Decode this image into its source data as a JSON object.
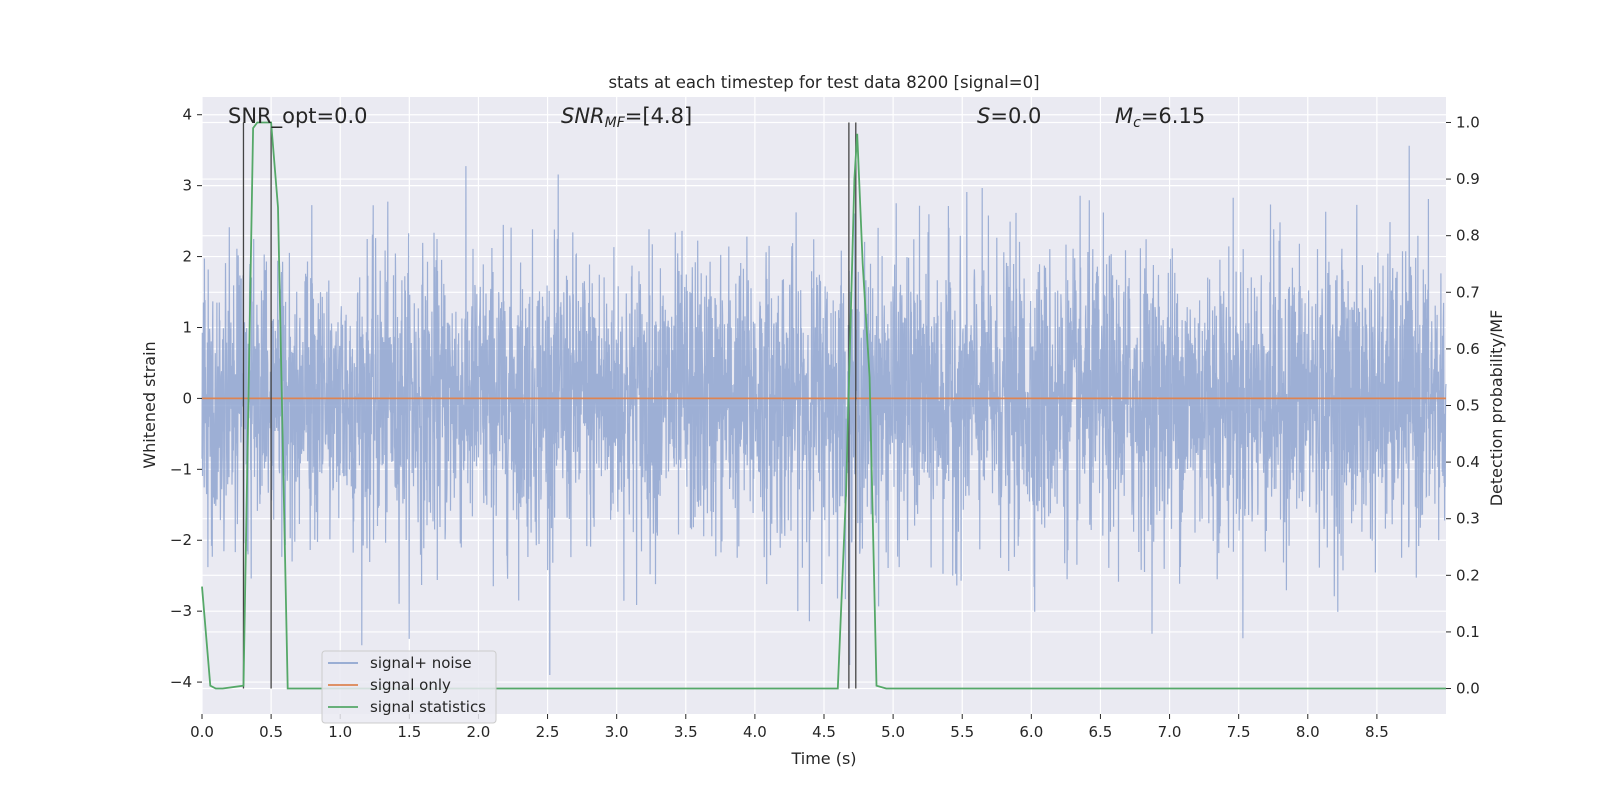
{
  "chart_data": {
    "type": "line",
    "title": "stats at each timestep for test data 8200 [signal=0]",
    "xlabel": "Time (s)",
    "ylabel": "Whitened strain",
    "y2label": "Detection probability/MF",
    "xlim": [
      0,
      9.0
    ],
    "ylim": [
      -4.45,
      4.25
    ],
    "y2lim": [
      -0.045,
      1.045
    ],
    "xticks": [
      "0.0",
      "0.5",
      "1.0",
      "1.5",
      "2.0",
      "2.5",
      "3.0",
      "3.5",
      "4.0",
      "4.5",
      "5.0",
      "5.5",
      "6.0",
      "6.5",
      "7.0",
      "7.5",
      "8.0",
      "8.5"
    ],
    "yticks": [
      "4",
      "3",
      "2",
      "1",
      "0",
      "−1",
      "−2",
      "−3",
      "−4"
    ],
    "y2ticks": [
      "1.0",
      "0.9",
      "0.8",
      "0.7",
      "0.6",
      "0.5",
      "0.4",
      "0.3",
      "0.2",
      "0.1",
      "0.0"
    ],
    "grid": true,
    "legend_position": "lower-left",
    "annotations": {
      "snr_opt": "SNR_opt=0.0",
      "snr_mf_main": "SNR",
      "snr_mf_sub": "MF",
      "snr_mf_value": "=[4.8]",
      "s_main": "S",
      "s_value": "=0.0",
      "mc_main": "M",
      "mc_sub": "c",
      "mc_value": "=6.15"
    },
    "series": [
      {
        "name": "signal+ noise",
        "color": "#8fa5d0",
        "description_note": "whitened noise, approx. amplitude envelope +/-2, peaks near +/-3.9",
        "envelope_max": 3.9,
        "envelope_min": -3.9
      },
      {
        "name": "signal only",
        "color": "#dd8452",
        "x": [
          0,
          9.0
        ],
        "y": [
          0,
          0
        ]
      },
      {
        "name": "signal statistics",
        "color": "#55a868",
        "axis": "right",
        "x": [
          0.0,
          0.06,
          0.1,
          0.15,
          0.3,
          0.37,
          0.4,
          0.45,
          0.5,
          0.55,
          0.62,
          0.7,
          4.6,
          4.66,
          4.72,
          4.74,
          4.78,
          4.83,
          4.88,
          4.95,
          9.0
        ],
        "y": [
          0.18,
          0.005,
          0.0,
          0.0,
          0.005,
          0.99,
          1.0,
          1.0,
          1.0,
          0.85,
          0.0,
          0.0,
          0.0,
          0.35,
          0.9,
          0.98,
          0.75,
          0.55,
          0.005,
          0.0,
          0.0
        ]
      }
    ],
    "vlines_x": [
      0.3,
      0.5,
      4.68,
      4.73
    ],
    "legend": [
      {
        "label": "signal+ noise",
        "color": "#8fa5d0"
      },
      {
        "label": "signal only",
        "color": "#dd8452"
      },
      {
        "label": "signal statistics",
        "color": "#55a868"
      }
    ]
  }
}
